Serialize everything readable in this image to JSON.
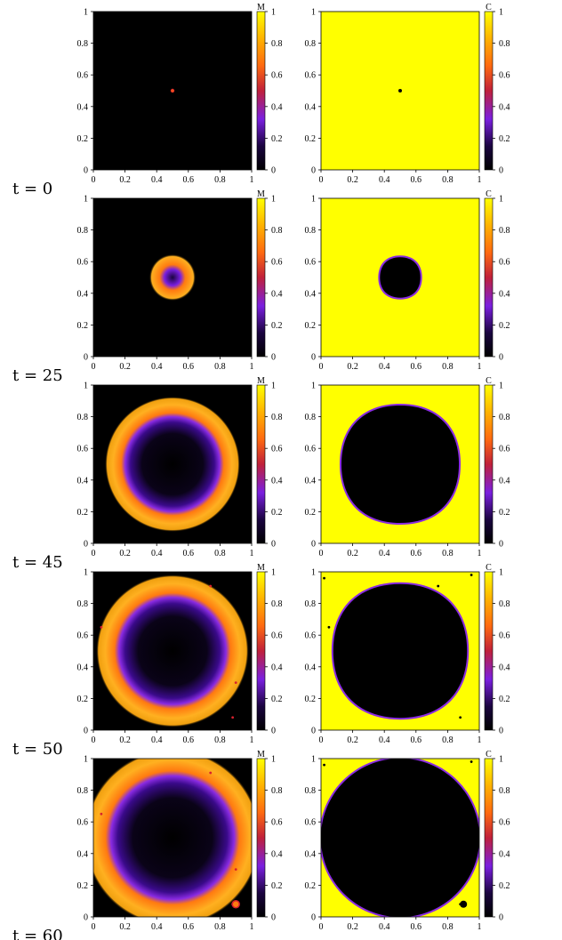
{
  "colors": {
    "cmap": [
      "#000000",
      "#3a0a8a",
      "#8a2be2",
      "#d8212e",
      "#ff7a10",
      "#ffcc00",
      "#ffff00"
    ],
    "background": "#ffffff"
  },
  "chart_data": {
    "type": "heatmap",
    "colorbar": {
      "range": [
        0,
        1
      ],
      "ticks": [
        "0",
        "0.2",
        "0.4",
        "0.6",
        "0.8",
        "1"
      ]
    },
    "axis_ticks": [
      "0",
      "0.2",
      "0.4",
      "0.6",
      "0.8",
      "1"
    ],
    "axis_range": [
      0,
      1
    ],
    "fields": [
      {
        "key": "M",
        "label": "M"
      },
      {
        "key": "C",
        "label": "C"
      }
    ],
    "rows": [
      {
        "time_label": "t = 0",
        "t": 0,
        "front_radius": 0.01,
        "inner_radius": 0.0,
        "ring_width": 0.0,
        "shape": "circle"
      },
      {
        "time_label": "t = 25",
        "t": 25,
        "front_radius": 0.12,
        "inner_radius": 0.07,
        "ring_width": 0.05,
        "shape": "rounded-square"
      },
      {
        "time_label": "t = 45",
        "t": 45,
        "front_radius": 0.35,
        "inner_radius": 0.2,
        "ring_width": 0.14,
        "shape": "rounded-square"
      },
      {
        "time_label": "t = 50",
        "t": 50,
        "front_radius": 0.4,
        "inner_radius": 0.24,
        "ring_width": 0.15,
        "shape": "rounded-square"
      },
      {
        "time_label": "t = 60",
        "t": 60,
        "front_radius": 0.48,
        "inner_radius": 0.35,
        "ring_width": 0.14,
        "shape": "circle"
      }
    ]
  }
}
